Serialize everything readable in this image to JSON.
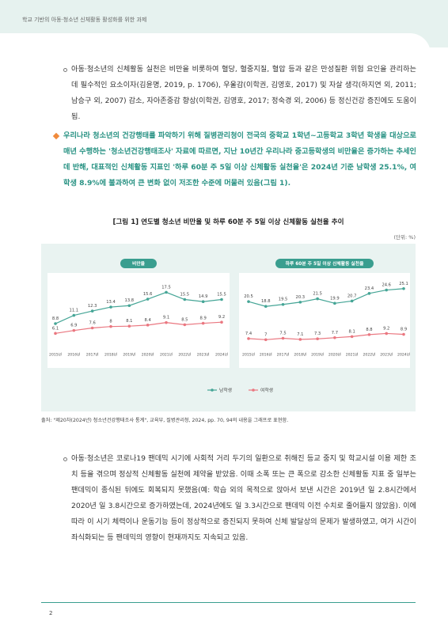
{
  "header": {
    "title": "학교 기반의 아동·청소년 신체활동 활성화를 위한 과제"
  },
  "paragraphs": [
    "아동·청소년의 신체활동 실천은 비만을 비롯하여 혈당, 혈중지질, 혈압 등과 같은 만성질환 위험 요인을 관리하는 데 필수적인 요소이자(김윤명, 2019, p. 1706), 우울감(이학권, 김영호, 2017) 및 자살 생각(하지연 외, 2011; 남승구 외, 2007) 감소, 자아존중감 향상(이학권, 김영호, 2017; 정숙경 외, 2006) 등 정신건강 증진에도 도움이 됨.",
    "우리나라 청소년의 건강행태를 파악하기 위해 질병관리청이 전국의 중학교 1학년~고등학교 3학년 학생을 대상으로 매년 수행하는 '청소년건강행태조사' 자료에 따르면, 지난 10년간 우리나라 중고등학생의 비만율은 증가하는 추세인 데 반해, 대표적인 신체활동 지표인 '하루 60분 주 5일 이상 신체활동 실천율'은 2024년 기준 남학생 25.1%, 여학생 8.9%에 불과하여 큰 변화 없이 저조한 수준에 머물러 있음(그림 1).",
    "아동·청소년은 코로나19 팬데믹 시기에 사회적 거리 두기의 일환으로 취해진 등교 중지 및 학교시설 이용 제한 조치 등을 겪으며 정상적 신체활동 실천에 제약을 받았음. 이때 소폭 또는 큰 폭으로 감소한 신체활동 지표 중 일부는 팬데믹이 종식된 뒤에도 회복되지 못했음(예: 학습 외의 목적으로 앉아서 보낸 시간은 2019년 일 2.8시간에서 2020년 일 3.8시간으로 증가하였는데, 2024년에도 일 3.3시간으로 팬데믹 이전 수치로 줄어들지 않았음). 이에 따라 이 시기 체력이나 운동기능 등이 정상적으로 증진되지 못하여 신체 발달상의 문제가 발생하였고, 여가 시간이 좌식화되는 등 팬데믹의 영향이 현재까지도 지속되고 있음."
  ],
  "figure": {
    "title": "[그림 1] 연도별 청소년 비만율 및 하루 60분 주 5일 이상 신체활동 실천율 추이",
    "unit": "(단위: %)",
    "source": "출처: \"제20차(2024년) 청소년건강행태조사 통계\", 교육부, 질병관리청, 2024, pp. 70, 94의 내용을 그래프로 표현함."
  },
  "chart_data": [
    {
      "type": "line",
      "title": "비만율",
      "categories": [
        "2015년",
        "2016년",
        "2017년",
        "2018년",
        "2019년",
        "2020년",
        "2021년",
        "2022년",
        "2023년",
        "2024년"
      ],
      "series": [
        {
          "name": "남학생",
          "color": "#45a596",
          "values": [
            8.8,
            11.1,
            12.3,
            13.4,
            13.8,
            15.6,
            17.5,
            15.5,
            14.9,
            15.5
          ]
        },
        {
          "name": "여학생",
          "color": "#ea7780",
          "values": [
            6.1,
            6.9,
            7.6,
            8.0,
            8.1,
            8.4,
            9.1,
            8.5,
            8.9,
            9.2
          ]
        }
      ],
      "ylim": [
        2,
        20
      ]
    },
    {
      "type": "line",
      "title": "하루 60분 주 5일 이상 신체활동 실천율",
      "categories": [
        "2015년",
        "2016년",
        "2017년",
        "2018년",
        "2019년",
        "2020년",
        "2021년",
        "2022년",
        "2023년",
        "2024년"
      ],
      "series": [
        {
          "color": "#45a596",
          "values": [
            20.5,
            18.8,
            19.5,
            20.3,
            21.5,
            19.9,
            20.7,
            23.4,
            24.6,
            25.1
          ]
        },
        {
          "color": "#ea7780",
          "values": [
            7.4,
            7.0,
            7.5,
            7.1,
            7.3,
            7.7,
            8.1,
            8.8,
            9.2,
            8.9
          ]
        }
      ],
      "ylim": [
        4,
        27
      ]
    }
  ],
  "page_number": "2"
}
